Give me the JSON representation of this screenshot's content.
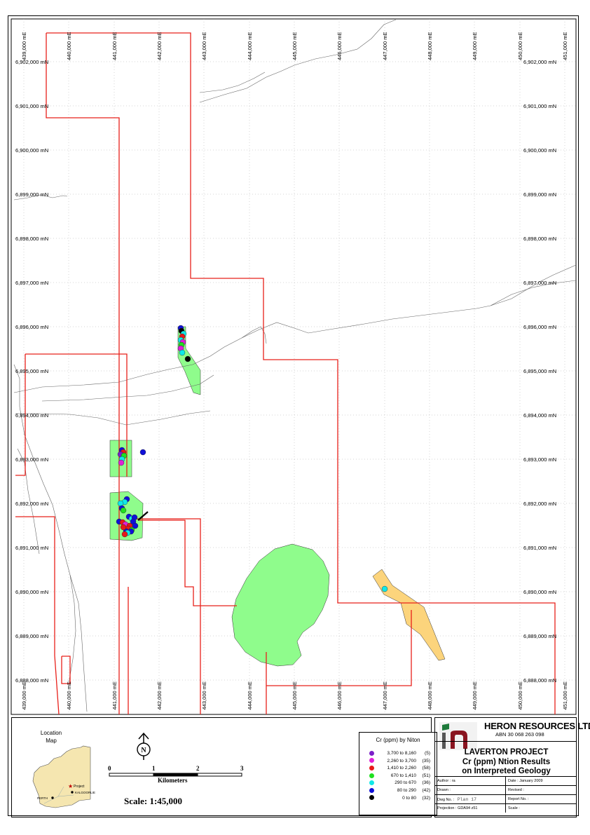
{
  "map": {
    "easting_labels": [
      "439,000 mE",
      "440,000 mE",
      "441,000 mE",
      "442,000 mE",
      "443,000 mE",
      "444,000 mE",
      "445,000 mE",
      "446,000 mE",
      "447,000 mE",
      "448,000 mE",
      "449,000 mE",
      "450,000 mE",
      "451,000 mE"
    ],
    "northing_labels": [
      "6,902,000 mN",
      "6,901,000 mN",
      "6,900,000 mN",
      "6,899,000 mN",
      "6,898,000 mN",
      "6,897,000 mN",
      "6,896,000 mN",
      "6,895,000 mN",
      "6,894,000 mN",
      "6,893,000 mN",
      "6,892,000 mN",
      "6,891,000 mN",
      "6,890,000 mN",
      "6,889,000 mN",
      "6,888,000 mN"
    ],
    "colors": {
      "tenement_boundary": "#e8201a",
      "geology_green": "#8ffc8c",
      "geology_orange": "#fcd47c",
      "drainage": "#666666"
    }
  },
  "location_map": {
    "title": "Location\nMap",
    "project_label": "Project",
    "kalgoorlie_label": "KALGOORLIE",
    "perth_label": "PERTH"
  },
  "scale_bar": {
    "ticks": [
      "0",
      "1",
      "2",
      "3"
    ],
    "unit_label": "Kilometers",
    "scale_text": "Scale: 1:45,000"
  },
  "north_arrow": {
    "letter": "N"
  },
  "legend": {
    "title": "Cr (ppm) by Niton",
    "classes": [
      {
        "range": "3,700 to 8,160",
        "count": "(5)",
        "color": "#7b1fc8"
      },
      {
        "range": "2,260 to 3,700",
        "count": "(35)",
        "color": "#e020d8"
      },
      {
        "range": "1,410 to 2,260",
        "count": "(58)",
        "color": "#e81818"
      },
      {
        "range": "670 to 1,410",
        "count": "(51)",
        "color": "#20e020"
      },
      {
        "range": "290 to 670",
        "count": "(36)",
        "color": "#10e8e8"
      },
      {
        "range": "80 to 290",
        "count": "(42)",
        "color": "#1010d8"
      },
      {
        "range": "0 to 80",
        "count": "(32)",
        "color": "#000000"
      }
    ]
  },
  "title_block": {
    "company": "HERON RESOURCES LTD",
    "abn": "ABN 30 068 263 098",
    "project": "LAVERTON PROJECT",
    "title_line1": "Cr (ppm) Ntion Results",
    "title_line2": "on Interpreted Geology",
    "author": "Author : ra",
    "date": "Date : January 2009",
    "drawn": "Drawn :",
    "revised": "Revised :",
    "dwg_label": "Dwg No. :",
    "dwg_value": "Plan 17",
    "report": "Report No. :",
    "projection": "Projection : GDA94 z51",
    "scale": "Scale :"
  }
}
